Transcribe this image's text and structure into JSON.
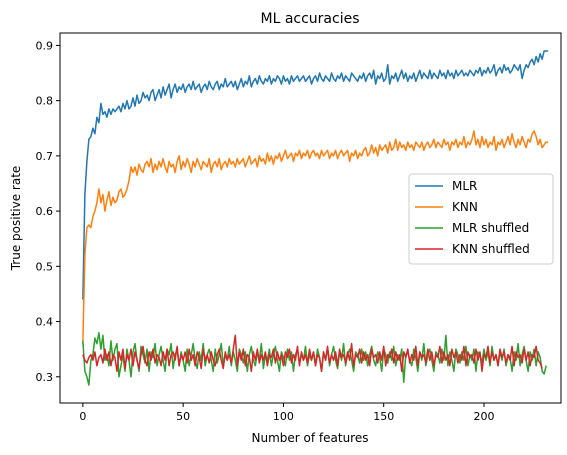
{
  "chart_data": {
    "type": "line",
    "title": "ML accuracies",
    "xlabel": "Number of features",
    "ylabel": "True positive rate",
    "xlim": [
      -11.4,
      238.4
    ],
    "ylim": [
      0.2525,
      0.9225
    ],
    "xticks": [
      0,
      50,
      100,
      150,
      200
    ],
    "yticks": [
      0.3,
      0.4,
      0.5,
      0.6,
      0.7,
      0.8,
      0.9
    ],
    "ytick_labels": [
      "0.3",
      "0.4",
      "0.5",
      "0.6",
      "0.7",
      "0.8",
      "0.9"
    ],
    "grid": false,
    "legend_position": "center-right",
    "series": [
      {
        "name": "MLR",
        "color": "#1f77b4",
        "values": [
          0.44,
          0.63,
          0.69,
          0.73,
          0.735,
          0.75,
          0.74,
          0.77,
          0.76,
          0.795,
          0.775,
          0.78,
          0.77,
          0.785,
          0.775,
          0.785,
          0.78,
          0.785,
          0.79,
          0.78,
          0.795,
          0.785,
          0.8,
          0.785,
          0.79,
          0.805,
          0.79,
          0.81,
          0.795,
          0.8,
          0.815,
          0.805,
          0.81,
          0.8,
          0.815,
          0.82,
          0.8,
          0.81,
          0.82,
          0.805,
          0.825,
          0.81,
          0.82,
          0.83,
          0.805,
          0.82,
          0.83,
          0.815,
          0.825,
          0.82,
          0.83,
          0.815,
          0.825,
          0.83,
          0.82,
          0.835,
          0.82,
          0.825,
          0.83,
          0.815,
          0.825,
          0.83,
          0.82,
          0.835,
          0.825,
          0.82,
          0.83,
          0.835,
          0.82,
          0.83,
          0.825,
          0.84,
          0.825,
          0.83,
          0.835,
          0.825,
          0.835,
          0.82,
          0.83,
          0.84,
          0.825,
          0.835,
          0.83,
          0.845,
          0.825,
          0.835,
          0.84,
          0.83,
          0.845,
          0.835,
          0.83,
          0.84,
          0.835,
          0.845,
          0.83,
          0.84,
          0.835,
          0.845,
          0.84,
          0.83,
          0.845,
          0.835,
          0.84,
          0.83,
          0.845,
          0.835,
          0.84,
          0.845,
          0.835,
          0.84,
          0.845,
          0.835,
          0.84,
          0.845,
          0.83,
          0.84,
          0.845,
          0.835,
          0.85,
          0.84,
          0.835,
          0.845,
          0.84,
          0.835,
          0.85,
          0.84,
          0.835,
          0.845,
          0.84,
          0.85,
          0.835,
          0.845,
          0.84,
          0.835,
          0.85,
          0.845,
          0.84,
          0.835,
          0.845,
          0.84,
          0.85,
          0.835,
          0.845,
          0.85,
          0.84,
          0.855,
          0.83,
          0.845,
          0.84,
          0.85,
          0.835,
          0.84,
          0.865,
          0.83,
          0.845,
          0.84,
          0.85,
          0.835,
          0.845,
          0.855,
          0.84,
          0.85,
          0.835,
          0.845,
          0.84,
          0.85,
          0.835,
          0.845,
          0.855,
          0.84,
          0.85,
          0.845,
          0.84,
          0.855,
          0.84,
          0.85,
          0.845,
          0.84,
          0.855,
          0.845,
          0.85,
          0.84,
          0.855,
          0.845,
          0.85,
          0.84,
          0.855,
          0.845,
          0.85,
          0.855,
          0.845,
          0.85,
          0.845,
          0.855,
          0.85,
          0.845,
          0.855,
          0.85,
          0.86,
          0.845,
          0.855,
          0.85,
          0.86,
          0.85,
          0.855,
          0.865,
          0.845,
          0.855,
          0.86,
          0.85,
          0.865,
          0.855,
          0.86,
          0.85,
          0.855,
          0.865,
          0.86,
          0.855,
          0.865,
          0.84,
          0.855,
          0.865,
          0.86,
          0.87,
          0.875,
          0.865,
          0.88,
          0.87,
          0.885,
          0.875,
          0.89,
          0.89,
          0.89
        ]
      },
      {
        "name": "KNN",
        "color": "#ff7f0e",
        "values": [
          0.36,
          0.52,
          0.57,
          0.575,
          0.57,
          0.59,
          0.6,
          0.615,
          0.64,
          0.615,
          0.63,
          0.6,
          0.62,
          0.635,
          0.61,
          0.625,
          0.615,
          0.62,
          0.635,
          0.64,
          0.625,
          0.63,
          0.64,
          0.655,
          0.68,
          0.67,
          0.68,
          0.665,
          0.685,
          0.675,
          0.67,
          0.685,
          0.69,
          0.68,
          0.695,
          0.67,
          0.685,
          0.675,
          0.69,
          0.68,
          0.695,
          0.68,
          0.67,
          0.69,
          0.68,
          0.685,
          0.67,
          0.69,
          0.7,
          0.675,
          0.69,
          0.68,
          0.695,
          0.685,
          0.67,
          0.69,
          0.68,
          0.695,
          0.685,
          0.675,
          0.69,
          0.685,
          0.68,
          0.695,
          0.67,
          0.685,
          0.69,
          0.68,
          0.695,
          0.675,
          0.685,
          0.69,
          0.68,
          0.695,
          0.685,
          0.69,
          0.68,
          0.695,
          0.685,
          0.69,
          0.695,
          0.68,
          0.69,
          0.7,
          0.685,
          0.69,
          0.695,
          0.68,
          0.7,
          0.69,
          0.695,
          0.685,
          0.705,
          0.69,
          0.7,
          0.685,
          0.7,
          0.695,
          0.705,
          0.69,
          0.7,
          0.71,
          0.695,
          0.7,
          0.705,
          0.69,
          0.705,
          0.7,
          0.71,
          0.695,
          0.705,
          0.7,
          0.71,
          0.695,
          0.705,
          0.71,
          0.7,
          0.705,
          0.695,
          0.71,
          0.7,
          0.705,
          0.71,
          0.695,
          0.705,
          0.7,
          0.71,
          0.695,
          0.705,
          0.71,
          0.7,
          0.705,
          0.71,
          0.69,
          0.705,
          0.7,
          0.71,
          0.695,
          0.705,
          0.7,
          0.71,
          0.715,
          0.7,
          0.705,
          0.72,
          0.705,
          0.715,
          0.7,
          0.72,
          0.71,
          0.715,
          0.72,
          0.705,
          0.725,
          0.71,
          0.715,
          0.73,
          0.71,
          0.725,
          0.715,
          0.72,
          0.71,
          0.725,
          0.715,
          0.72,
          0.71,
          0.725,
          0.72,
          0.715,
          0.725,
          0.71,
          0.72,
          0.725,
          0.715,
          0.72,
          0.73,
          0.715,
          0.725,
          0.72,
          0.715,
          0.73,
          0.72,
          0.725,
          0.71,
          0.725,
          0.72,
          0.73,
          0.715,
          0.725,
          0.72,
          0.735,
          0.715,
          0.725,
          0.72,
          0.73,
          0.745,
          0.72,
          0.73,
          0.715,
          0.735,
          0.72,
          0.73,
          0.715,
          0.725,
          0.72,
          0.735,
          0.71,
          0.725,
          0.72,
          0.73,
          0.715,
          0.725,
          0.735,
          0.72,
          0.74,
          0.725,
          0.715,
          0.73,
          0.72,
          0.735,
          0.725,
          0.715,
          0.73,
          0.725,
          0.74,
          0.745,
          0.735,
          0.72,
          0.73,
          0.715,
          0.72,
          0.725,
          0.725
        ]
      },
      {
        "name": "MLR shuffled",
        "color": "#2ca02c",
        "values": [
          0.365,
          0.31,
          0.3,
          0.285,
          0.33,
          0.34,
          0.37,
          0.36,
          0.38,
          0.35,
          0.375,
          0.33,
          0.34,
          0.32,
          0.365,
          0.33,
          0.35,
          0.36,
          0.3,
          0.32,
          0.34,
          0.31,
          0.35,
          0.33,
          0.3,
          0.345,
          0.36,
          0.33,
          0.31,
          0.355,
          0.34,
          0.325,
          0.35,
          0.31,
          0.345,
          0.335,
          0.36,
          0.32,
          0.34,
          0.355,
          0.33,
          0.31,
          0.35,
          0.34,
          0.36,
          0.315,
          0.34,
          0.35,
          0.32,
          0.345,
          0.33,
          0.31,
          0.35,
          0.32,
          0.34,
          0.36,
          0.33,
          0.315,
          0.345,
          0.33,
          0.36,
          0.32,
          0.34,
          0.35,
          0.33,
          0.31,
          0.35,
          0.325,
          0.34,
          0.36,
          0.32,
          0.34,
          0.33,
          0.355,
          0.32,
          0.345,
          0.33,
          0.31,
          0.35,
          0.34,
          0.325,
          0.345,
          0.31,
          0.34,
          0.355,
          0.33,
          0.32,
          0.345,
          0.33,
          0.36,
          0.315,
          0.34,
          0.33,
          0.35,
          0.32,
          0.34,
          0.355,
          0.33,
          0.31,
          0.345,
          0.335,
          0.32,
          0.35,
          0.33,
          0.345,
          0.31,
          0.34,
          0.35,
          0.325,
          0.34,
          0.33,
          0.355,
          0.32,
          0.34,
          0.33,
          0.345,
          0.32,
          0.35,
          0.335,
          0.31,
          0.345,
          0.33,
          0.35,
          0.32,
          0.34,
          0.355,
          0.33,
          0.315,
          0.345,
          0.33,
          0.36,
          0.32,
          0.34,
          0.35,
          0.33,
          0.31,
          0.345,
          0.34,
          0.325,
          0.35,
          0.33,
          0.345,
          0.32,
          0.34,
          0.355,
          0.33,
          0.32,
          0.345,
          0.335,
          0.31,
          0.35,
          0.34,
          0.325,
          0.345,
          0.33,
          0.355,
          0.32,
          0.34,
          0.33,
          0.35,
          0.29,
          0.34,
          0.345,
          0.33,
          0.32,
          0.35,
          0.335,
          0.31,
          0.345,
          0.33,
          0.36,
          0.32,
          0.34,
          0.35,
          0.33,
          0.31,
          0.345,
          0.34,
          0.325,
          0.35,
          0.33,
          0.375,
          0.32,
          0.345,
          0.33,
          0.31,
          0.35,
          0.34,
          0.325,
          0.345,
          0.33,
          0.355,
          0.32,
          0.34,
          0.33,
          0.35,
          0.31,
          0.345,
          0.34,
          0.325,
          0.35,
          0.33,
          0.345,
          0.32,
          0.355,
          0.33,
          0.34,
          0.32,
          0.345,
          0.33,
          0.35,
          0.32,
          0.34,
          0.335,
          0.31,
          0.345,
          0.33,
          0.36,
          0.32,
          0.34,
          0.355,
          0.33,
          0.31,
          0.345,
          0.33,
          0.35,
          0.32,
          0.345,
          0.335,
          0.31,
          0.305,
          0.32
        ]
      },
      {
        "name": "KNN shuffled",
        "color": "#d62728",
        "values": [
          0.34,
          0.33,
          0.325,
          0.335,
          0.34,
          0.33,
          0.345,
          0.32,
          0.335,
          0.34,
          0.325,
          0.35,
          0.33,
          0.345,
          0.32,
          0.34,
          0.335,
          0.31,
          0.345,
          0.33,
          0.35,
          0.315,
          0.34,
          0.33,
          0.35,
          0.32,
          0.345,
          0.33,
          0.315,
          0.34,
          0.355,
          0.33,
          0.32,
          0.345,
          0.33,
          0.35,
          0.325,
          0.34,
          0.335,
          0.32,
          0.345,
          0.33,
          0.35,
          0.32,
          0.34,
          0.345,
          0.33,
          0.355,
          0.32,
          0.34,
          0.33,
          0.345,
          0.325,
          0.35,
          0.33,
          0.34,
          0.32,
          0.345,
          0.335,
          0.315,
          0.35,
          0.33,
          0.34,
          0.325,
          0.345,
          0.33,
          0.32,
          0.34,
          0.35,
          0.33,
          0.315,
          0.345,
          0.33,
          0.34,
          0.325,
          0.35,
          0.375,
          0.32,
          0.345,
          0.33,
          0.35,
          0.32,
          0.34,
          0.335,
          0.31,
          0.345,
          0.33,
          0.35,
          0.325,
          0.34,
          0.33,
          0.345,
          0.32,
          0.34,
          0.335,
          0.35,
          0.325,
          0.345,
          0.33,
          0.34,
          0.32,
          0.345,
          0.335,
          0.35,
          0.325,
          0.34,
          0.33,
          0.355,
          0.32,
          0.345,
          0.33,
          0.34,
          0.325,
          0.35,
          0.33,
          0.345,
          0.32,
          0.34,
          0.335,
          0.31,
          0.345,
          0.33,
          0.355,
          0.325,
          0.34,
          0.33,
          0.345,
          0.32,
          0.35,
          0.335,
          0.34,
          0.325,
          0.345,
          0.33,
          0.36,
          0.32,
          0.34,
          0.335,
          0.35,
          0.325,
          0.345,
          0.33,
          0.34,
          0.32,
          0.35,
          0.335,
          0.34,
          0.325,
          0.345,
          0.33,
          0.355,
          0.32,
          0.34,
          0.335,
          0.35,
          0.325,
          0.345,
          0.33,
          0.34,
          0.31,
          0.345,
          0.335,
          0.35,
          0.325,
          0.34,
          0.33,
          0.355,
          0.32,
          0.345,
          0.335,
          0.34,
          0.325,
          0.35,
          0.33,
          0.345,
          0.32,
          0.34,
          0.335,
          0.355,
          0.325,
          0.345,
          0.33,
          0.34,
          0.32,
          0.35,
          0.335,
          0.345,
          0.325,
          0.34,
          0.33,
          0.355,
          0.32,
          0.345,
          0.335,
          0.34,
          0.325,
          0.35,
          0.33,
          0.345,
          0.31,
          0.34,
          0.335,
          0.355,
          0.325,
          0.345,
          0.33,
          0.34,
          0.32,
          0.35,
          0.335,
          0.345,
          0.325,
          0.34,
          0.33,
          0.355,
          0.32,
          0.345,
          0.335,
          0.34,
          0.325,
          0.35,
          0.33,
          0.345,
          0.32,
          0.34,
          0.335,
          0.355,
          0.33,
          0.325,
          0.315
        ]
      }
    ]
  }
}
